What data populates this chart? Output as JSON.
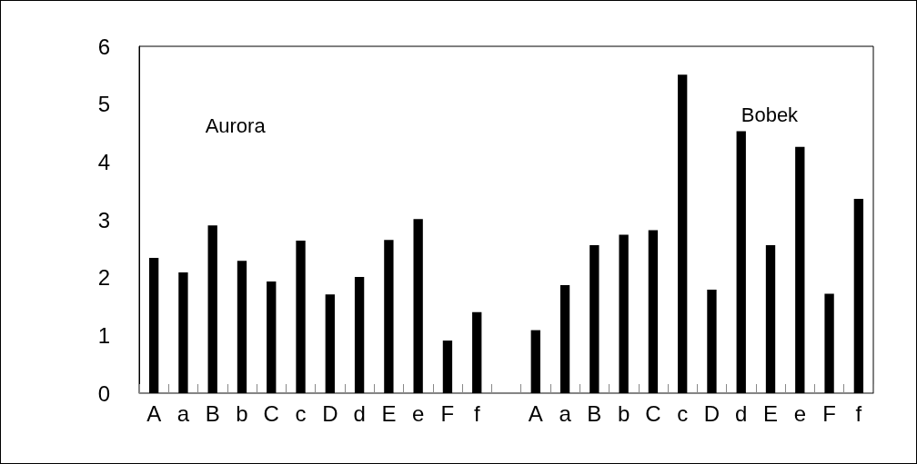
{
  "chart_data": {
    "type": "bar",
    "categories": [
      "A",
      "a",
      "B",
      "b",
      "C",
      "c",
      "D",
      "d",
      "E",
      "e",
      "F",
      "f",
      null,
      "A",
      "a",
      "B",
      "b",
      "C",
      "c",
      "D",
      "d",
      "E",
      "e",
      "F",
      "f"
    ],
    "values": [
      2.34,
      2.09,
      2.9,
      2.29,
      1.93,
      2.64,
      1.71,
      2.01,
      2.65,
      3.01,
      0.91,
      1.4,
      null,
      1.09,
      1.87,
      2.56,
      2.74,
      2.82,
      5.51,
      1.79,
      4.53,
      2.56,
      4.26,
      1.72,
      3.36
    ],
    "color": "#000000",
    "ylim": [
      0,
      6
    ],
    "yticks": [
      0,
      1,
      2,
      3,
      4,
      5,
      6
    ],
    "annotations": [
      "Aurora",
      "Bobek"
    ]
  }
}
